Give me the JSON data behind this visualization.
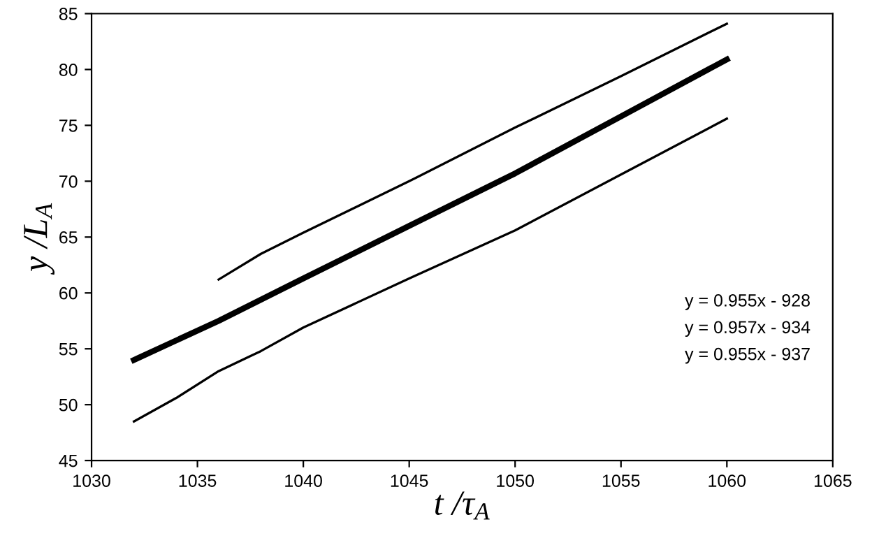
{
  "chart_data": {
    "type": "line",
    "xlabel": "t /τ$_{A}$",
    "ylabel": "y /L$_{A}$",
    "xlim": [
      1030,
      1065
    ],
    "xticks": [
      1030,
      1035,
      1040,
      1045,
      1050,
      1055,
      1060,
      1065
    ],
    "ylim": [
      45,
      85
    ],
    "yticks": [
      45,
      50,
      55,
      60,
      65,
      70,
      75,
      80,
      85
    ],
    "grid": false,
    "legend": false,
    "marker": "none",
    "line_style": "solid",
    "series": [
      {
        "color": "#000000",
        "x": [
          1032,
          1036,
          1040,
          1045,
          1050,
          1055,
          1060
        ],
        "values": [
          54,
          57.5,
          61.3,
          66,
          70.7,
          75.8,
          80.9
        ]
      },
      {
        "color": "#000000",
        "x": [
          1036,
          1038,
          1040,
          1045,
          1050,
          1055,
          1060
        ],
        "values": [
          61.2,
          63.5,
          65.4,
          70,
          74.8,
          79.4,
          84.1
        ]
      },
      {
        "color": "#000000",
        "x": [
          1032,
          1034,
          1036,
          1038,
          1040,
          1045,
          1050,
          1055,
          1060
        ],
        "values": [
          48.5,
          50.6,
          53,
          54.8,
          56.9,
          61.3,
          65.6,
          70.6,
          75.6
        ]
      }
    ],
    "annotations": [
      "y = 0.955x - 928",
      "y = 0.957x - 934",
      "y = 0.955x - 937"
    ]
  }
}
